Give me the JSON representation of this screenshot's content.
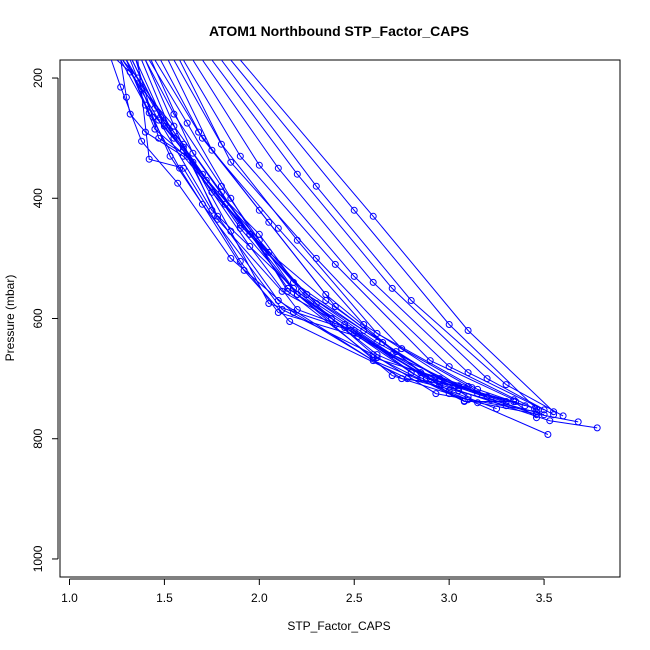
{
  "chart_data": {
    "type": "line",
    "title": "ATOM1 Northbound STP_Factor_CAPS",
    "xlabel": "STP_Factor_CAPS",
    "ylabel": "Pressure (mbar)",
    "xlim": [
      0.95,
      3.9
    ],
    "ylim": [
      1030,
      170
    ],
    "y_reversed": true,
    "x_ticks": [
      "1.0",
      "1.5",
      "2.0",
      "2.5",
      "3.0",
      "3.5"
    ],
    "y_ticks": [
      "200",
      "400",
      "600",
      "800",
      "1000"
    ],
    "grid": false,
    "legend": "none",
    "color": "#0000ff",
    "series": [
      {
        "x": [
          1.25,
          1.32,
          1.47,
          1.75,
          2.18,
          2.62,
          3.05,
          3.53,
          3.78
        ],
        "y": [
          170,
          190,
          270,
          420,
          550,
          660,
          720,
          770,
          782
        ]
      },
      {
        "x": [
          1.22,
          1.27,
          1.38,
          1.57,
          1.85,
          2.18,
          2.6,
          3.1,
          3.52
        ],
        "y": [
          170,
          215,
          305,
          375,
          500,
          590,
          670,
          735,
          793
        ]
      },
      {
        "x": [
          1.28,
          1.36,
          1.55,
          1.9,
          2.2,
          2.7,
          3.15,
          3.68
        ],
        "y": [
          170,
          200,
          290,
          450,
          560,
          695,
          740,
          772
        ]
      },
      {
        "x": [
          1.3,
          1.42,
          1.58,
          1.92,
          2.16,
          2.78,
          3.22,
          3.5
        ],
        "y": [
          170,
          258,
          350,
          520,
          605,
          700,
          735,
          760
        ]
      },
      {
        "x": [
          1.27,
          1.4,
          1.6,
          1.95,
          2.2,
          2.5,
          2.88,
          3.34,
          3.46
        ],
        "y": [
          170,
          245,
          320,
          480,
          585,
          620,
          700,
          738,
          765
        ]
      },
      {
        "x": [
          1.3,
          1.45,
          1.65,
          1.85,
          2.05,
          2.48,
          2.95,
          3.3
        ],
        "y": [
          170,
          285,
          340,
          455,
          575,
          620,
          710,
          745
        ]
      },
      {
        "x": [
          1.32,
          1.44,
          1.53,
          1.7,
          2.12,
          2.6,
          2.93,
          3.46
        ],
        "y": [
          170,
          265,
          330,
          410,
          585,
          660,
          725,
          755
        ]
      },
      {
        "x": [
          1.33,
          1.5,
          1.72,
          2.0,
          2.22,
          2.62,
          3.08,
          3.35
        ],
        "y": [
          170,
          280,
          370,
          460,
          555,
          665,
          738,
          738
        ]
      },
      {
        "x": [
          1.35,
          1.47,
          1.62,
          1.78,
          2.1,
          2.75,
          3.12
        ],
        "y": [
          170,
          300,
          330,
          430,
          570,
          700,
          715
        ]
      },
      {
        "x": [
          1.36,
          1.42,
          1.6,
          1.9,
          2.1,
          2.52,
          3.0,
          3.25
        ],
        "y": [
          170,
          335,
          350,
          505,
          590,
          630,
          720,
          750
        ]
      },
      {
        "x": [
          1.4,
          1.55,
          1.8,
          2.2,
          2.45,
          2.95,
          3.2
        ],
        "y": [
          170,
          260,
          380,
          560,
          615,
          705,
          730
        ]
      },
      {
        "x": [
          1.42,
          1.62,
          1.85,
          2.15,
          2.6,
          3.1
        ],
        "y": [
          170,
          275,
          400,
          555,
          665,
          713
        ]
      },
      {
        "x": [
          1.45,
          1.68,
          2.0,
          2.35,
          2.85,
          3.3
        ],
        "y": [
          170,
          290,
          420,
          560,
          690,
          740
        ]
      },
      {
        "x": [
          1.48,
          1.7,
          2.05,
          2.4,
          2.9,
          3.4
        ],
        "y": [
          170,
          300,
          440,
          580,
          700,
          745
        ]
      },
      {
        "x": [
          1.52,
          1.75,
          2.1,
          2.55,
          3.05
        ],
        "y": [
          170,
          320,
          450,
          610,
          712
        ]
      },
      {
        "x": [
          1.55,
          1.8,
          2.2,
          2.62,
          3.15,
          3.47
        ],
        "y": [
          170,
          310,
          470,
          625,
          718,
          752
        ]
      },
      {
        "x": [
          1.58,
          1.85,
          2.3,
          2.75,
          3.2
        ],
        "y": [
          170,
          340,
          500,
          650,
          730
        ]
      },
      {
        "x": [
          1.6,
          1.9,
          2.4,
          2.9,
          3.34
        ],
        "y": [
          170,
          330,
          510,
          670,
          735
        ]
      },
      {
        "x": [
          1.65,
          2.0,
          2.5,
          3.0,
          3.45
        ],
        "y": [
          170,
          345,
          530,
          680,
          750
        ]
      },
      {
        "x": [
          1.7,
          2.1,
          2.6,
          3.1,
          3.5
        ],
        "y": [
          170,
          350,
          540,
          690,
          752
        ]
      },
      {
        "x": [
          1.75,
          2.2,
          2.7,
          3.2,
          3.55
        ],
        "y": [
          170,
          360,
          550,
          700,
          760
        ]
      },
      {
        "x": [
          1.8,
          2.3,
          2.8,
          3.3,
          3.6
        ],
        "y": [
          170,
          380,
          570,
          710,
          762
        ]
      },
      {
        "x": [
          1.85,
          2.5,
          3.0,
          3.46
        ],
        "y": [
          170,
          420,
          610,
          750
        ]
      },
      {
        "x": [
          1.9,
          2.6,
          3.1,
          3.55
        ],
        "y": [
          170,
          430,
          620,
          755
        ]
      },
      {
        "x": [
          1.27,
          1.3,
          1.32,
          1.4,
          1.6,
          1.95,
          2.2,
          2.4
        ],
        "y": [
          170,
          232,
          260,
          290,
          330,
          460,
          560,
          610
        ]
      },
      {
        "x": [
          1.28,
          1.38,
          1.55,
          1.8,
          2.15,
          2.45,
          2.85
        ],
        "y": [
          170,
          218,
          280,
          390,
          550,
          610,
          700
        ]
      },
      {
        "x": [
          1.3,
          1.45,
          1.6,
          1.78,
          2.12,
          2.38,
          2.8,
          3.08
        ],
        "y": [
          170,
          250,
          310,
          435,
          555,
          600,
          690,
          737
        ]
      },
      {
        "x": [
          1.33,
          1.48,
          1.7,
          2.0,
          2.25,
          2.65,
          3.0
        ],
        "y": [
          170,
          265,
          360,
          470,
          560,
          640,
          725
        ]
      },
      {
        "x": [
          1.35,
          1.5,
          1.75,
          2.05,
          2.35,
          2.72,
          3.1
        ],
        "y": [
          170,
          275,
          390,
          490,
          570,
          655,
          730
        ]
      },
      {
        "x": [
          1.38,
          1.55,
          1.82,
          2.18,
          2.55,
          2.95,
          3.3
        ],
        "y": [
          170,
          300,
          410,
          540,
          620,
          700,
          738
        ]
      },
      {
        "x": [
          1.4,
          1.6,
          1.9,
          2.25,
          2.62,
          3.05,
          3.46
        ],
        "y": [
          170,
          315,
          445,
          560,
          640,
          715,
          760
        ]
      },
      {
        "x": [
          1.43,
          1.65,
          1.95,
          2.3,
          2.7,
          3.15
        ],
        "y": [
          170,
          325,
          460,
          575,
          660,
          725
        ]
      }
    ]
  }
}
